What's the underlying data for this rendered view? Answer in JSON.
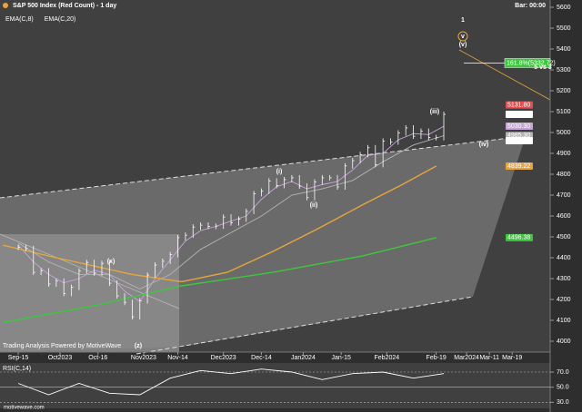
{
  "header": {
    "title": "S&P 500 Index (Red Count) - 1 day",
    "bar": "Bar: 00:00"
  },
  "chart_data": [
    {
      "type": "ohlc",
      "watermark": "Trading Analysis Powered by MotiveWave",
      "x": [
        0,
        2,
        4,
        6,
        8,
        10,
        12,
        14,
        16,
        18,
        20,
        22,
        24,
        26,
        28,
        30,
        32,
        34,
        36,
        38,
        40,
        42,
        44,
        46,
        48,
        50,
        52,
        54,
        56,
        58,
        60,
        62,
        64,
        66,
        68,
        70,
        72,
        74,
        76,
        78,
        80,
        82,
        84,
        86,
        88,
        90,
        92,
        94,
        96,
        98,
        100,
        102,
        104,
        106,
        108,
        110,
        112
      ],
      "values": [
        4450,
        4444,
        4330,
        4337,
        4274,
        4288,
        4229,
        4258,
        4336,
        4377,
        4327,
        4373,
        4278,
        4217,
        4186,
        4117,
        4193,
        4317,
        4365,
        4383,
        4415,
        4496,
        4508,
        4547,
        4556,
        4550,
        4551,
        4595,
        4567,
        4585,
        4622,
        4707,
        4719,
        4768,
        4746,
        4774,
        4783,
        4743,
        4688,
        4763,
        4783,
        4783,
        4739,
        4840,
        4865,
        4894,
        4927,
        4846,
        4959,
        4954,
        4998,
        5022,
        4982,
        5006,
        4976,
        4975,
        5087
      ],
      "color": "#ffffff",
      "series": [
        {
          "name": "EMA(C,8)",
          "color": "#c9a3dc",
          "x": [
            0,
            4,
            8,
            12,
            16,
            20,
            24,
            28,
            32,
            36,
            40,
            44,
            48,
            52,
            56,
            60,
            64,
            68,
            72,
            76,
            80,
            84,
            88,
            92,
            96,
            100,
            104,
            108,
            112
          ],
          "values": [
            4460,
            4380,
            4320,
            4280,
            4300,
            4340,
            4320,
            4240,
            4190,
            4300,
            4390,
            4480,
            4530,
            4550,
            4575,
            4600,
            4680,
            4740,
            4765,
            4730,
            4750,
            4765,
            4820,
            4890,
            4900,
            4965,
            4995,
            4990,
            5030
          ]
        },
        {
          "name": "EMA(C,20)",
          "color": "#b4b4b4",
          "x": [
            0,
            8,
            16,
            24,
            32,
            40,
            48,
            56,
            64,
            72,
            80,
            88,
            96,
            104,
            112
          ],
          "values": [
            4470,
            4380,
            4320,
            4320,
            4250,
            4320,
            4440,
            4520,
            4600,
            4700,
            4730,
            4770,
            4860,
            4940,
            4985
          ]
        },
        {
          "color": "#e8a53c",
          "x": [
            -4,
            10,
            20,
            30,
            43,
            55,
            67,
            79,
            91,
            101,
            110
          ],
          "values": [
            4460,
            4400,
            4360,
            4320,
            4285,
            4330,
            4430,
            4540,
            4657,
            4750,
            4839
          ]
        },
        {
          "color": "#3cc83c",
          "x": [
            -4,
            20,
            43,
            67,
            91,
            110
          ],
          "values": [
            4090,
            4170,
            4265,
            4330,
            4410,
            4496
          ]
        }
      ],
      "price_tags": [
        {
          "value": 5131.8,
          "label": "5131.80",
          "color": "#e05050"
        },
        {
          "value": 5087.03,
          "label": "5087.03",
          "color": "#ffffff"
        },
        {
          "value": 5030.3,
          "label": "5030.30",
          "color": "#c9a3dc"
        },
        {
          "value": 4985.3,
          "label": "4985.30",
          "color": "#b4b4b4"
        },
        {
          "value": 4960.81,
          "label": "4960.81",
          "color": "#ffffff"
        },
        {
          "value": 4839.22,
          "label": "4839.22",
          "color": "#e8a53c"
        },
        {
          "value": 4496.38,
          "label": "4496.38",
          "color": "#3cc83c"
        }
      ],
      "target": {
        "value": 5332.72,
        "label": "161.8%(5332.72)"
      },
      "annotations": [
        "1",
        "v",
        "(v)",
        "(iii)",
        "(iv)",
        "(i)",
        "(ii)",
        "(x)",
        "(z)",
        "5 vs 3"
      ],
      "xlim": [
        -4.8,
        140
      ],
      "xticks": [
        {
          "value": 0,
          "label": "Sep-15"
        },
        {
          "value": 11,
          "label": "Oct2023"
        },
        {
          "value": 21,
          "label": "Oct-16"
        },
        {
          "value": 33,
          "label": "Nov2023"
        },
        {
          "value": 42,
          "label": "Nov-14"
        },
        {
          "value": 54,
          "label": "Dec2023"
        },
        {
          "value": 64,
          "label": "Dec-14"
        },
        {
          "value": 75,
          "label": "Jan2024"
        },
        {
          "value": 85,
          "label": "Jan-15"
        },
        {
          "value": 97,
          "label": "Feb2024"
        },
        {
          "value": 110,
          "label": "Feb-19"
        },
        {
          "value": 118,
          "label": "Mar2024"
        },
        {
          "value": 124,
          "label": "Mar-11"
        },
        {
          "value": 130,
          "label": "Mar-19"
        }
      ],
      "ylim": [
        3947.8,
        5634.8
      ],
      "yticks": [
        4000,
        4100,
        4200,
        4300,
        4400,
        4500,
        4600,
        4700,
        4800,
        4900,
        5000,
        5100,
        5200,
        5300,
        5400,
        5500,
        5600
      ]
    },
    {
      "type": "line",
      "title": "RSI(C,14)",
      "color": "#ffffff",
      "x": [
        0,
        8,
        16,
        24,
        32,
        40,
        48,
        56,
        64,
        72,
        80,
        88,
        96,
        104,
        112
      ],
      "values": [
        55,
        40,
        55,
        42,
        40,
        62,
        72,
        68,
        74,
        70,
        60,
        68,
        70,
        62,
        68
      ],
      "xlim": [
        -4.8,
        140
      ],
      "ylim": [
        22,
        82
      ],
      "yticks": [
        {
          "value": 70,
          "label": "70.0"
        },
        {
          "value": 50,
          "label": "50.0"
        },
        {
          "value": 30,
          "label": "30.0"
        }
      ]
    }
  ],
  "footer": "motivewave.com"
}
